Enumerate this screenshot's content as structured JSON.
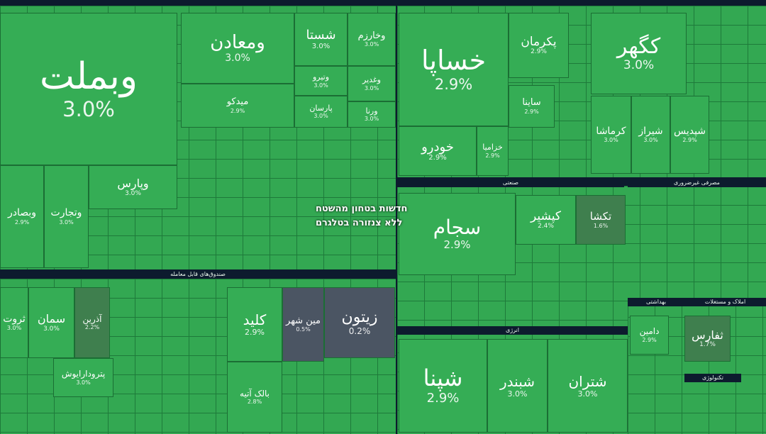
{
  "headers": [
    "صندوق‌های قابل معامله",
    "صنعتی",
    "انرژی",
    "بهداشتی",
    "املاک و مستغلات",
    "مصرفی غیرضروری",
    "تکنولوژی"
  ],
  "tiles": [
    {
      "label": "وبملت",
      "change": "3.0%"
    },
    {
      "label": "وپارس",
      "change": "3.0%"
    },
    {
      "label": "وتجارت",
      "change": "3.0%"
    },
    {
      "label": "وبصادر",
      "change": "2.9%"
    },
    {
      "label": "ومعادن",
      "change": "3.0%"
    },
    {
      "label": "میدکو",
      "change": "2.9%"
    },
    {
      "label": "شستا",
      "change": "3.0%"
    },
    {
      "label": "وخارزم",
      "change": "3.0%"
    },
    {
      "label": "وتیرو",
      "change": "3.0%"
    },
    {
      "label": "وغدیر",
      "change": "3.0%"
    },
    {
      "label": "پارسان",
      "change": "3.0%"
    },
    {
      "label": "ورنا",
      "change": "3.0%"
    },
    {
      "label": "خساپا",
      "change": "2.9%"
    },
    {
      "label": "پکرمان",
      "change": "2.9%"
    },
    {
      "label": "ساینا",
      "change": "2.9%"
    },
    {
      "label": "کگهر",
      "change": "3.0%"
    },
    {
      "label": "کرماشا",
      "change": "3.0%"
    },
    {
      "label": "شیراز",
      "change": "3.0%"
    },
    {
      "label": "شپدیس",
      "change": "2.9%"
    },
    {
      "label": "خودرو",
      "change": "2.9%"
    },
    {
      "label": "خزامیا",
      "change": "2.9%"
    },
    {
      "label": "سجام",
      "change": "2.9%"
    },
    {
      "label": "کپشیر",
      "change": "2.4%"
    },
    {
      "label": "تکشا",
      "change": "1.6%"
    },
    {
      "label": "ثروت",
      "change": "3.0%"
    },
    {
      "label": "سمان",
      "change": "3.0%"
    },
    {
      "label": "آذرین",
      "change": "2.2%"
    },
    {
      "label": "پترودارایوش",
      "change": "3.0%"
    },
    {
      "label": "کلید",
      "change": "2.9%"
    },
    {
      "label": "مین شهر",
      "change": "0.5%"
    },
    {
      "label": "زیتون",
      "change": "0.2%"
    },
    {
      "label": "بالک آتیه",
      "change": "2.8%"
    },
    {
      "label": "شپنا",
      "change": "2.9%"
    },
    {
      "label": "شبندر",
      "change": "3.0%"
    },
    {
      "label": "شتران",
      "change": "3.0%"
    },
    {
      "label": "دامین",
      "change": "2.9%"
    },
    {
      "label": "ثفارس",
      "change": "1.7%"
    }
  ],
  "watermark": [
    "חדשות בטחון מהשטח",
    "ללא צנזורה בטלגרם"
  ]
}
